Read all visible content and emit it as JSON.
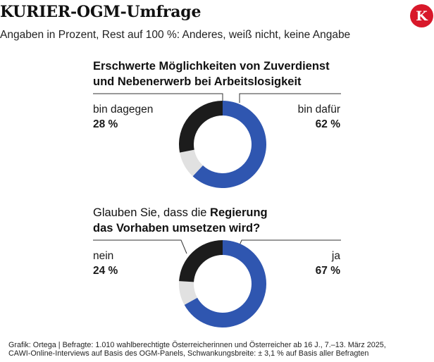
{
  "header": {
    "title": "KURIER-OGM-Umfrage",
    "subtitle": "Angaben in Prozent, Rest auf 100 %: Anderes, weiß nicht, keine Angabe",
    "logo_letter": "K"
  },
  "chart_data": [
    {
      "type": "pie",
      "title_lines": [
        "Erschwerte Möglichkeiten von Zuverdienst",
        "und Nebenerwerb bei Arbeitslosigkeit"
      ],
      "slices": [
        {
          "label": "bin dafür",
          "value": 62,
          "value_text": "62 %",
          "color": "#2f56b0"
        },
        {
          "label": "rest",
          "value": 10,
          "color": "#e1e1e1"
        },
        {
          "label": "bin dagegen",
          "value": 28,
          "value_text": "28 %",
          "color": "#1c1c1c"
        }
      ]
    },
    {
      "type": "pie",
      "title_parts": [
        "Glauben Sie, dass die ",
        "Regierung",
        "das Vorhaben umsetzen wird?"
      ],
      "slices": [
        {
          "label": "ja",
          "value": 67,
          "value_text": "67 %",
          "color": "#2f56b0"
        },
        {
          "label": "rest",
          "value": 9,
          "color": "#e1e1e1"
        },
        {
          "label": "nein",
          "value": 24,
          "value_text": "24 %",
          "color": "#1c1c1c"
        }
      ]
    }
  ],
  "footer": {
    "line1": "Grafik: Ortega | Befragte: 1.010 wahlberechtigte Österreicherinnen und Österreicher ab 16 J., 7.–13. März 2025,",
    "line2": "CAWI-Online-Interviews  auf Basis des OGM-Panels, Schwankungsbreite: ± 3,1 % auf Basis aller Befragten"
  }
}
